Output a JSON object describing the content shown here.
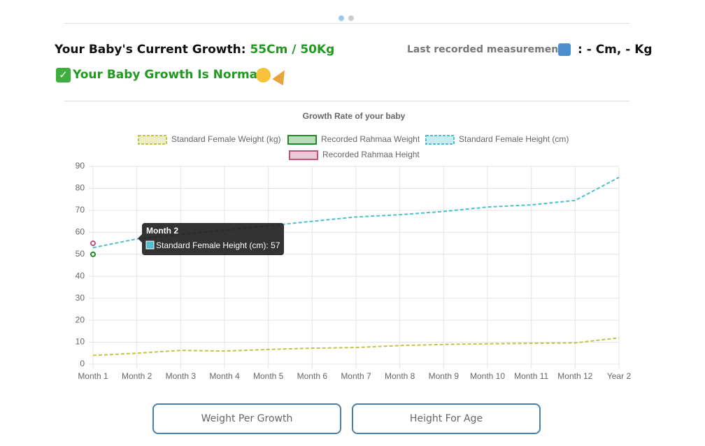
{
  "header": {
    "growth_label": "Your Baby's Current Growth:",
    "growth_value": "55Cm / 50Kg",
    "last_label": "Last recorded measurements",
    "last_value": ": - Cm, - Kg",
    "status": "Your Baby Growth Is Normal"
  },
  "buttons": [
    "Weight Per Growth",
    "Height For Age"
  ],
  "tooltip": {
    "title": "Month 2",
    "text": "Standard Female Height (cm): 57"
  },
  "chart_data": {
    "type": "line",
    "title": "Growth Rate of your baby",
    "categories": [
      "Month 1",
      "Month 2",
      "Month 3",
      "Month 4",
      "Month 5",
      "Month 6",
      "Month 7",
      "Month 8",
      "Month 9",
      "Month 10",
      "Month 11",
      "Month 12",
      "Year 2"
    ],
    "series": [
      {
        "name": "Standard Female Weight (kg)",
        "color": "#c3c444",
        "dashed": true,
        "values": [
          4,
          5,
          6.3,
          6,
          6.7,
          7.3,
          7.6,
          8.5,
          9,
          9.3,
          9.5,
          9.7,
          12
        ]
      },
      {
        "name": "Recorded Rahmaa Weight",
        "color": "#1e8a1e",
        "dashed": false,
        "values": [
          50,
          null,
          null,
          null,
          null,
          null,
          null,
          null,
          null,
          null,
          null,
          null,
          null
        ]
      },
      {
        "name": "Standard Female Height (cm)",
        "color": "#4dbfcf",
        "dashed": true,
        "values": [
          53,
          57,
          59,
          61,
          63,
          65,
          67,
          68,
          69.5,
          71.5,
          72.5,
          74.5,
          85
        ]
      },
      {
        "name": "Recorded Rahmaa Height",
        "color": "#c4507a",
        "dashed": false,
        "values": [
          55,
          null,
          null,
          null,
          null,
          null,
          null,
          null,
          null,
          null,
          null,
          null,
          null
        ]
      }
    ],
    "ylim": [
      0,
      90
    ],
    "yticks": [
      0,
      10,
      20,
      30,
      40,
      50,
      60,
      70,
      80,
      90
    ],
    "grid": true
  }
}
